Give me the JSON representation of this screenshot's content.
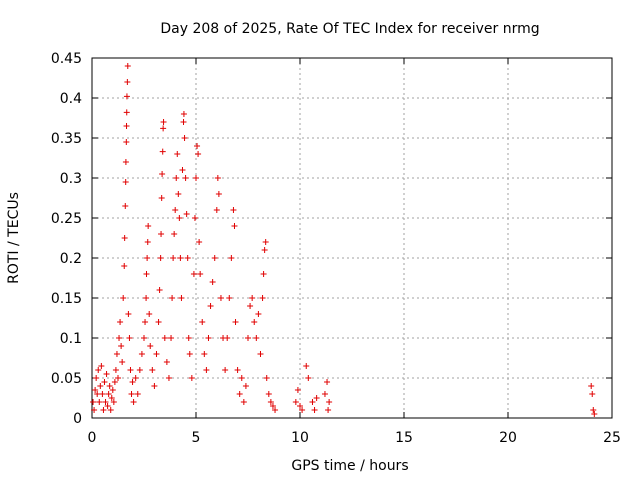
{
  "chart_data": {
    "type": "scatter",
    "title": "Day 208 of 2025, Rate Of TEC Index for receiver nrmg",
    "xlabel": "GPS time / hours",
    "ylabel": "ROTI / TECUs",
    "xlim": [
      0,
      25
    ],
    "ylim": [
      0,
      0.45
    ],
    "grid": true,
    "marker": "plus",
    "series_color": "#e00000",
    "x_ticks": [
      {
        "value": 0,
        "label": "0"
      },
      {
        "value": 5,
        "label": "5"
      },
      {
        "value": 10,
        "label": "10"
      },
      {
        "value": 15,
        "label": "15"
      },
      {
        "value": 20,
        "label": "20"
      },
      {
        "value": 25,
        "label": "25"
      }
    ],
    "y_ticks": [
      {
        "value": 0,
        "label": "0"
      },
      {
        "value": 0.05,
        "label": "0.05"
      },
      {
        "value": 0.1,
        "label": "0.1"
      },
      {
        "value": 0.15,
        "label": "0.15"
      },
      {
        "value": 0.2,
        "label": "0.2"
      },
      {
        "value": 0.25,
        "label": "0.25"
      },
      {
        "value": 0.3,
        "label": "0.3"
      },
      {
        "value": 0.35,
        "label": "0.35"
      },
      {
        "value": 0.4,
        "label": "0.4"
      },
      {
        "value": 0.45,
        "label": "0.45"
      }
    ],
    "series": [
      {
        "name": "ROTI",
        "points": [
          [
            0.05,
            0.02
          ],
          [
            0.1,
            0.01
          ],
          [
            0.15,
            0.035
          ],
          [
            0.2,
            0.05
          ],
          [
            0.25,
            0.03
          ],
          [
            0.3,
            0.06
          ],
          [
            0.35,
            0.02
          ],
          [
            0.4,
            0.04
          ],
          [
            0.45,
            0.065
          ],
          [
            0.5,
            0.03
          ],
          [
            0.55,
            0.01
          ],
          [
            0.6,
            0.045
          ],
          [
            0.65,
            0.02
          ],
          [
            0.7,
            0.055
          ],
          [
            0.75,
            0.015
          ],
          [
            0.8,
            0.03
          ],
          [
            0.85,
            0.04
          ],
          [
            0.9,
            0.01
          ],
          [
            0.95,
            0.025
          ],
          [
            1.0,
            0.035
          ],
          [
            1.05,
            0.02
          ],
          [
            1.1,
            0.045
          ],
          [
            1.15,
            0.06
          ],
          [
            1.2,
            0.08
          ],
          [
            1.25,
            0.05
          ],
          [
            1.3,
            0.1
          ],
          [
            1.35,
            0.12
          ],
          [
            1.4,
            0.09
          ],
          [
            1.45,
            0.07
          ],
          [
            1.5,
            0.15
          ],
          [
            1.55,
            0.19
          ],
          [
            1.57,
            0.225
          ],
          [
            1.6,
            0.265
          ],
          [
            1.62,
            0.295
          ],
          [
            1.63,
            0.32
          ],
          [
            1.65,
            0.345
          ],
          [
            1.66,
            0.365
          ],
          [
            1.67,
            0.382
          ],
          [
            1.68,
            0.402
          ],
          [
            1.7,
            0.42
          ],
          [
            1.72,
            0.44
          ],
          [
            1.75,
            0.13
          ],
          [
            1.8,
            0.1
          ],
          [
            1.85,
            0.06
          ],
          [
            1.9,
            0.03
          ],
          [
            1.95,
            0.045
          ],
          [
            2.0,
            0.02
          ],
          [
            2.1,
            0.05
          ],
          [
            2.2,
            0.03
          ],
          [
            2.3,
            0.06
          ],
          [
            2.4,
            0.08
          ],
          [
            2.5,
            0.1
          ],
          [
            2.55,
            0.12
          ],
          [
            2.6,
            0.15
          ],
          [
            2.62,
            0.18
          ],
          [
            2.65,
            0.2
          ],
          [
            2.68,
            0.22
          ],
          [
            2.7,
            0.24
          ],
          [
            2.75,
            0.13
          ],
          [
            2.8,
            0.09
          ],
          [
            2.9,
            0.06
          ],
          [
            3.0,
            0.04
          ],
          [
            3.1,
            0.08
          ],
          [
            3.2,
            0.12
          ],
          [
            3.25,
            0.16
          ],
          [
            3.3,
            0.2
          ],
          [
            3.32,
            0.23
          ],
          [
            3.35,
            0.275
          ],
          [
            3.37,
            0.305
          ],
          [
            3.4,
            0.333
          ],
          [
            3.42,
            0.362
          ],
          [
            3.44,
            0.37
          ],
          [
            3.5,
            0.1
          ],
          [
            3.6,
            0.07
          ],
          [
            3.7,
            0.05
          ],
          [
            3.8,
            0.1
          ],
          [
            3.85,
            0.15
          ],
          [
            3.9,
            0.2
          ],
          [
            3.95,
            0.23
          ],
          [
            4.0,
            0.26
          ],
          [
            4.05,
            0.3
          ],
          [
            4.1,
            0.33
          ],
          [
            4.15,
            0.28
          ],
          [
            4.2,
            0.25
          ],
          [
            4.25,
            0.2
          ],
          [
            4.3,
            0.15
          ],
          [
            4.35,
            0.31
          ],
          [
            4.4,
            0.37
          ],
          [
            4.42,
            0.38
          ],
          [
            4.45,
            0.35
          ],
          [
            4.5,
            0.3
          ],
          [
            4.55,
            0.255
          ],
          [
            4.6,
            0.2
          ],
          [
            4.65,
            0.1
          ],
          [
            4.7,
            0.08
          ],
          [
            4.8,
            0.05
          ],
          [
            4.9,
            0.18
          ],
          [
            4.95,
            0.25
          ],
          [
            5.0,
            0.3
          ],
          [
            5.05,
            0.34
          ],
          [
            5.1,
            0.33
          ],
          [
            5.15,
            0.22
          ],
          [
            5.2,
            0.18
          ],
          [
            5.3,
            0.12
          ],
          [
            5.4,
            0.08
          ],
          [
            5.5,
            0.06
          ],
          [
            5.6,
            0.1
          ],
          [
            5.7,
            0.14
          ],
          [
            5.8,
            0.17
          ],
          [
            5.9,
            0.2
          ],
          [
            6.0,
            0.26
          ],
          [
            6.05,
            0.3
          ],
          [
            6.1,
            0.28
          ],
          [
            6.2,
            0.15
          ],
          [
            6.3,
            0.1
          ],
          [
            6.4,
            0.06
          ],
          [
            6.5,
            0.1
          ],
          [
            6.6,
            0.15
          ],
          [
            6.7,
            0.2
          ],
          [
            6.8,
            0.26
          ],
          [
            6.85,
            0.24
          ],
          [
            6.9,
            0.12
          ],
          [
            7.0,
            0.06
          ],
          [
            7.1,
            0.03
          ],
          [
            7.2,
            0.05
          ],
          [
            7.3,
            0.02
          ],
          [
            7.4,
            0.04
          ],
          [
            7.5,
            0.1
          ],
          [
            7.6,
            0.14
          ],
          [
            7.7,
            0.15
          ],
          [
            7.8,
            0.12
          ],
          [
            7.9,
            0.1
          ],
          [
            8.0,
            0.13
          ],
          [
            8.1,
            0.08
          ],
          [
            8.2,
            0.15
          ],
          [
            8.25,
            0.18
          ],
          [
            8.3,
            0.21
          ],
          [
            8.35,
            0.22
          ],
          [
            8.4,
            0.05
          ],
          [
            8.5,
            0.03
          ],
          [
            8.6,
            0.02
          ],
          [
            8.7,
            0.015
          ],
          [
            8.8,
            0.01
          ],
          [
            9.8,
            0.02
          ],
          [
            9.9,
            0.035
          ],
          [
            10.0,
            0.015
          ],
          [
            10.1,
            0.01
          ],
          [
            10.3,
            0.065
          ],
          [
            10.4,
            0.05
          ],
          [
            10.6,
            0.02
          ],
          [
            10.7,
            0.01
          ],
          [
            10.8,
            0.025
          ],
          [
            11.2,
            0.03
          ],
          [
            11.3,
            0.045
          ],
          [
            11.35,
            0.01
          ],
          [
            11.4,
            0.02
          ],
          [
            24.0,
            0.04
          ],
          [
            24.05,
            0.03
          ],
          [
            24.1,
            0.01
          ],
          [
            24.15,
            0.005
          ]
        ]
      }
    ]
  }
}
